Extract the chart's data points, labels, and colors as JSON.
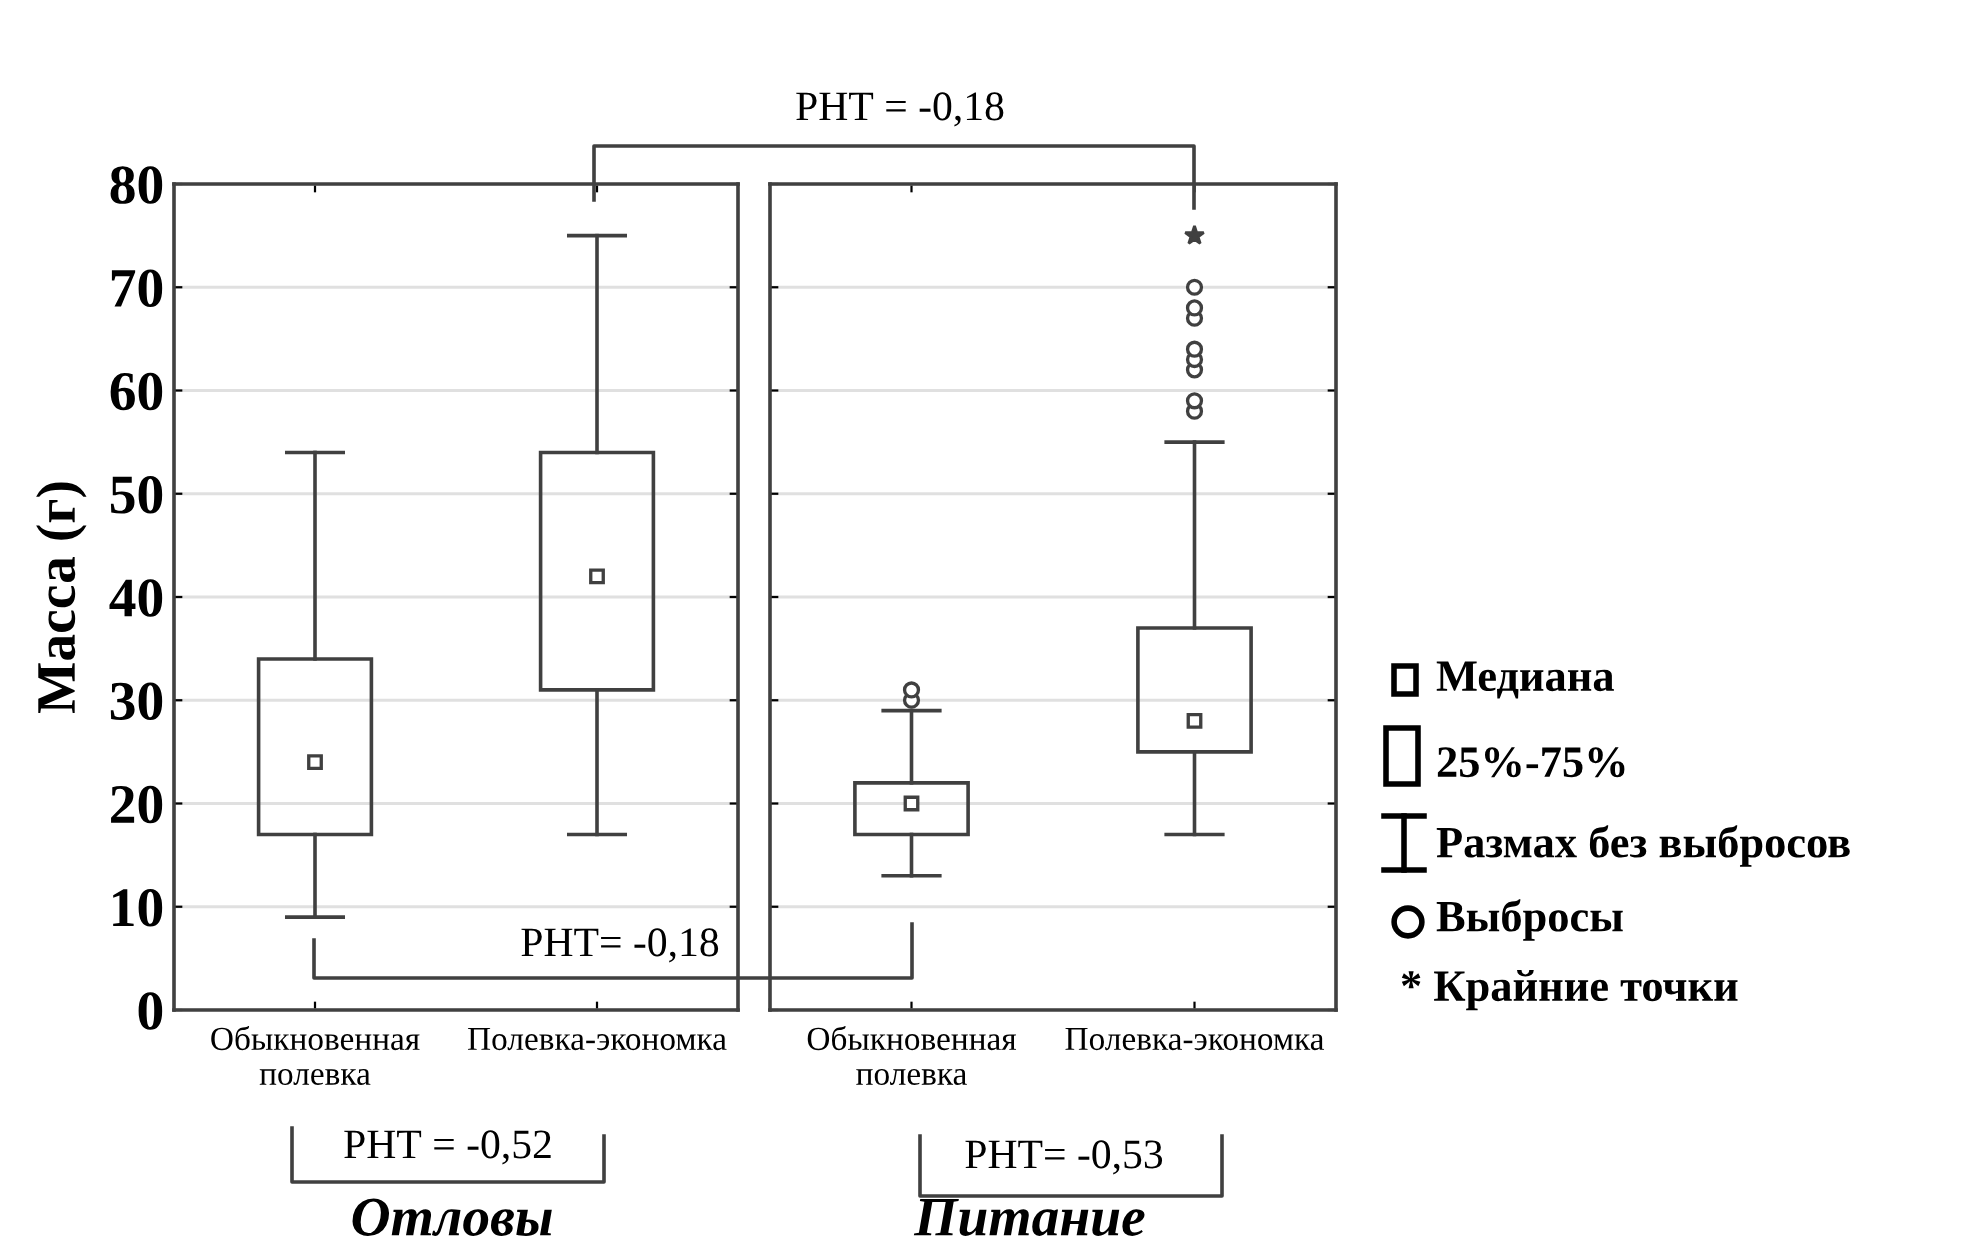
{
  "chart_data": [
    {
      "type": "box",
      "categories": [
        "Обыкновенная\nполевка",
        "Полевка-экономка"
      ],
      "ylabel": "Масса (г)",
      "xlabel": "Отловы",
      "ylim": [
        0,
        80
      ],
      "yticks": [
        0,
        10,
        20,
        30,
        40,
        50,
        60,
        70,
        80
      ],
      "grid": "y",
      "series": [
        {
          "color": "#404040",
          "boxes": [
            {
              "low": 9,
              "q1": 17,
              "median": 24,
              "q3": 34,
              "high": 54
            },
            {
              "low": 17,
              "q1": 31,
              "median": 42,
              "q3": 54,
              "high": 75
            }
          ]
        }
      ],
      "annotations": [
        "РНТ = -0,52",
        "РНТ = -0,18",
        "РНТ= -0,18"
      ]
    },
    {
      "type": "box",
      "categories": [
        "Обыкновенная\nполевка",
        "Полевка-экономка"
      ],
      "xlabel": "Питание",
      "ylim": [
        0,
        80
      ],
      "yticks": [
        0,
        10,
        20,
        30,
        40,
        50,
        60,
        70,
        80
      ],
      "grid": "y",
      "tick_labels": "x",
      "series": [
        {
          "color": "#404040",
          "boxes": [
            {
              "low": 13,
              "q1": 17,
              "median": 20,
              "q3": 22,
              "high": 29,
              "outliers": [
                30,
                31
              ]
            },
            {
              "low": 17,
              "q1": 25,
              "median": 28,
              "q3": 37,
              "high": 55,
              "outliers": [
                58,
                59,
                62,
                63,
                64,
                67,
                68,
                70
              ]
            }
          ]
        },
        {
          "type": "scatter",
          "color": "#404040",
          "marker": "star",
          "x": [
            "Полевка-экономка"
          ],
          "values": [
            75
          ]
        }
      ],
      "annotations": [
        "РНТ= -0,53",
        "Медиана",
        "25%-75%",
        "Размах без выбросов",
        "Выбросы",
        "* Крайние точки"
      ]
    }
  ]
}
